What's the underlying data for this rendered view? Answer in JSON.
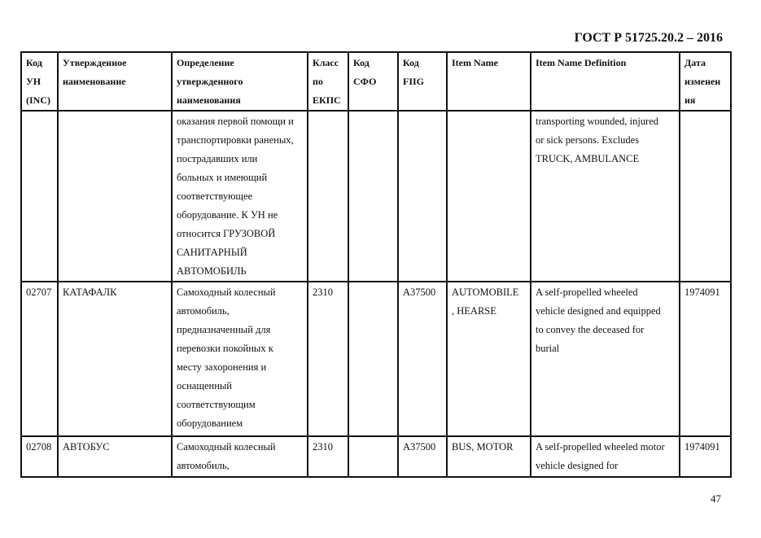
{
  "header": {
    "doc_code": "ГОСТ Р 51725.20.2 – 2016"
  },
  "table": {
    "columns": [
      [
        "Код",
        "УН",
        "(INC)"
      ],
      [
        "Утвержденное",
        "наименование"
      ],
      [
        "Определение",
        "утвержденного",
        "наименования"
      ],
      [
        "Класс",
        "по",
        "ЕКПС"
      ],
      [
        "Код",
        "СФО"
      ],
      [
        "Код",
        "FIIG"
      ],
      [
        "Item Name"
      ],
      [
        "Item Name Definition"
      ],
      [
        "Дата",
        "изменен",
        "ия"
      ]
    ],
    "rows": [
      [
        [],
        [],
        [
          "оказания первой помощи и",
          "транспортировки раненых,",
          "пострадавших или",
          "больных и имеющий",
          "соответствующее",
          "оборудование. К УН не",
          "относится ГРУЗОВОЙ",
          "САНИТАРНЫЙ",
          "АВТОМОБИЛЬ"
        ],
        [],
        [],
        [],
        [],
        [
          "transporting wounded, injured",
          "or sick persons. Excludes",
          "TRUCK, AMBULANCE"
        ],
        []
      ],
      [
        [
          "02707"
        ],
        [
          "КАТАФАЛК"
        ],
        [
          "Самоходный колесный",
          "автомобиль,",
          "предназначенный для",
          "перевозки покойных к",
          "месту захоронения и",
          "оснащенный",
          "соответствующим",
          "оборудованием"
        ],
        [
          "2310"
        ],
        [],
        [
          "A37500"
        ],
        [
          "AUTOMOBILE",
          ", HEARSE"
        ],
        [
          "A self-propelled wheeled",
          "vehicle designed and equipped",
          "to convey the deceased for",
          "burial"
        ],
        [
          "1974091"
        ]
      ],
      [
        [
          "02708"
        ],
        [
          "АВТОБУС"
        ],
        [
          "Самоходный колесный",
          "автомобиль,"
        ],
        [
          "2310"
        ],
        [],
        [
          "A37500"
        ],
        [
          "BUS, MOTOR"
        ],
        [
          "A self-propelled wheeled motor",
          "vehicle designed for"
        ],
        [
          "1974091"
        ]
      ]
    ]
  },
  "footer": {
    "page_number": "47"
  }
}
